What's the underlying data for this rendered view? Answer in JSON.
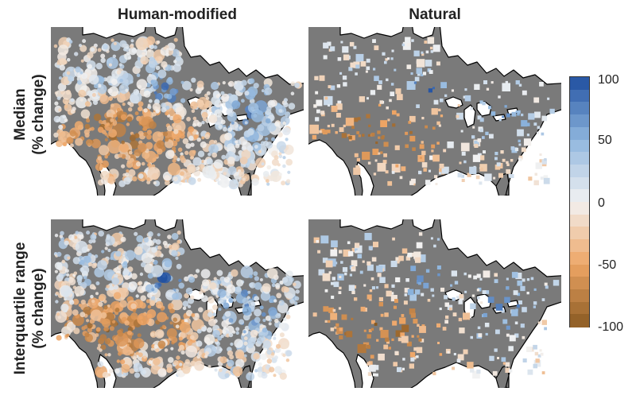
{
  "column_titles": [
    "Human-modified",
    "Natural"
  ],
  "row_titles": [
    {
      "line1": "Median",
      "line2": "(% change)"
    },
    {
      "line1": "Interquartile range",
      "line2": "(% change)"
    }
  ],
  "colorbar": {
    "min": -100,
    "max": 100,
    "ticks": [
      "100",
      "50",
      "0",
      "-50",
      "-100"
    ],
    "tick_values": [
      100,
      50,
      0,
      -50,
      -100
    ],
    "levels": 20,
    "colors": {
      "max": "#1f4fa0",
      "mid_pos": "#8fb6de",
      "zero": "#f2f2f2",
      "mid_neg": "#eea565",
      "min": "#8a5a22"
    }
  },
  "map_colors": {
    "land": "#7a7a7a",
    "water": "#ffffff",
    "coast": "#000000"
  },
  "marker_shapes": {
    "human_modified": "circle",
    "natural": "square"
  }
}
